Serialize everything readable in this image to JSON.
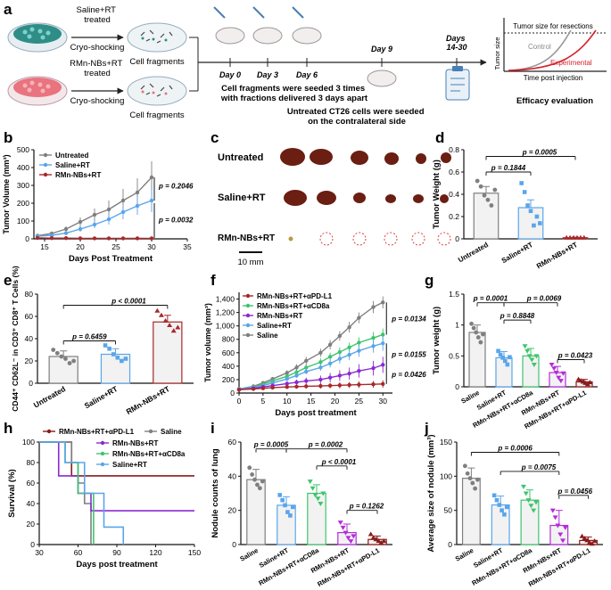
{
  "colors": {
    "gray": "#7f7f7f",
    "blue": "#5aa5ea",
    "red": "#a8282b",
    "green": "#3ec46d",
    "purple": "#8a2ad1",
    "violet": "#b42cd8",
    "darkred": "#8b1a1a",
    "dishTeal": "#2f8d88",
    "dishPink": "#e9737e"
  },
  "panel_letters": [
    "a",
    "b",
    "c",
    "d",
    "e",
    "f",
    "g",
    "h",
    "i",
    "j"
  ],
  "panel_a": {
    "top_treatment": "Saline+RT\ntreated",
    "top_process": "Cryo-shocking",
    "bottom_treatment": "RMn-NBs+RT\ntreated",
    "bottom_process": "Cryo-shocking",
    "fragments_top": "Cell fragments",
    "fragments_bottom": "Cell fragments",
    "days": [
      "Day 0",
      "Day 3",
      "Day 6",
      "Day 9",
      "Days\n14-30"
    ],
    "seed_note": "Cell fragments were seeded 3 times\nwith fractions delivered 3 days apart",
    "untreated_note": "Untreated CT26 cells were seeded\non the contralateral side",
    "efficacy": "Efficacy evaluation",
    "curve": {
      "title": "Tumor size for resections",
      "ylabel": "Tumor size",
      "xlabel": "Time post injection",
      "control": "Control",
      "experimental": "Experimental"
    }
  },
  "panel_c": {
    "rows": [
      "Untreated",
      "Saline+RT",
      "RMn-NBs+RT"
    ],
    "scale": "10 mm"
  },
  "chart_data": [
    {
      "id": "b",
      "type": "line",
      "ylabel": "Tumor Volume (mm³)",
      "xlabel": "Days Post Treatment",
      "xlim": [
        13.5,
        35
      ],
      "ylim": [
        0,
        500
      ],
      "xticks": [
        15,
        20,
        25,
        30,
        35
      ],
      "yticks": [
        0,
        100,
        200,
        300,
        400,
        500
      ],
      "legend": [
        "Untreated",
        "Saline+RT",
        "RMn-NBs+RT"
      ],
      "x": [
        14,
        16,
        18,
        20,
        22,
        24,
        26,
        28,
        30
      ],
      "series": [
        {
          "name": "Untreated",
          "color": "gray",
          "values": [
            18,
            30,
            55,
            95,
            135,
            165,
            215,
            260,
            345
          ],
          "err": [
            4,
            8,
            15,
            25,
            35,
            50,
            65,
            80,
            90
          ]
        },
        {
          "name": "Saline+RT",
          "color": "blue",
          "values": [
            15,
            20,
            32,
            55,
            80,
            110,
            150,
            185,
            215
          ],
          "err": [
            3,
            5,
            10,
            15,
            20,
            30,
            40,
            50,
            65
          ]
        },
        {
          "name": "RMn-NBs+RT",
          "color": "red",
          "values": [
            5,
            4,
            4,
            3,
            3,
            3,
            3,
            3,
            3
          ],
          "err": [
            1,
            1,
            1,
            1,
            1,
            1,
            1,
            1,
            1
          ]
        }
      ],
      "annotations": [
        "p = 0.2046",
        "p = 0.0032"
      ]
    },
    {
      "id": "d",
      "type": "bar",
      "ylabel": "Tumor Weight (g)",
      "ylim": [
        0,
        0.8
      ],
      "yticks": [
        0.0,
        0.2,
        0.4,
        0.6,
        0.8
      ],
      "categories": [
        "Untreated",
        "Saline+RT",
        "RMn-NBs+RT"
      ],
      "values": [
        0.41,
        0.28,
        0.01
      ],
      "err": [
        0.06,
        0.07,
        0.005
      ],
      "colors": [
        "gray",
        "blue",
        "red"
      ],
      "points": [
        [
          0.52,
          0.47,
          0.39,
          0.35,
          0.3,
          0.44
        ],
        [
          0.5,
          0.42,
          0.3,
          0.25,
          0.12,
          0.2,
          0.14
        ],
        [
          0.01,
          0.01,
          0.01,
          0.01,
          0.01,
          0.01
        ]
      ],
      "annotations": [
        "p = 0.1844",
        "p = 0.0005"
      ]
    },
    {
      "id": "e",
      "type": "bar",
      "ylabel": "CD44⁺ CD62L⁻ in CD3⁺ CD8⁺ T Cells (%)",
      "ylim": [
        0,
        80
      ],
      "yticks": [
        0,
        20,
        40,
        60,
        80
      ],
      "categories": [
        "Untreated",
        "Saline+RT",
        "RMn-NBs+RT"
      ],
      "values": [
        24,
        26,
        55
      ],
      "err": [
        5,
        5,
        6
      ],
      "colors": [
        "gray",
        "blue",
        "red"
      ],
      "points": [
        [
          30,
          27,
          24,
          22,
          18,
          20
        ],
        [
          34,
          31,
          26,
          23,
          20,
          22
        ],
        [
          65,
          61,
          56,
          52,
          47,
          50
        ]
      ],
      "annotations": [
        "p = 0.6459",
        "p < 0.0001"
      ]
    },
    {
      "id": "f",
      "type": "line",
      "ylabel": "Tumor volume (mm³)",
      "xlabel": "Days post treatment",
      "xlim": [
        0,
        32
      ],
      "ylim": [
        0,
        1500
      ],
      "xticks": [
        0,
        5,
        10,
        15,
        20,
        25,
        30
      ],
      "yticks": [
        0,
        200,
        400,
        600,
        800,
        1000,
        1200,
        1400
      ],
      "ytick_labels": [
        "0",
        "200",
        "400",
        "600",
        "800",
        "1,000",
        "1,200",
        "1,400"
      ],
      "legend": [
        "RMn-NBs+RT+αPD-L1",
        "RMn-NBs+RT+αCD8a",
        "RMn-NBs+RT",
        "Saline+RT",
        "Saline"
      ],
      "x": [
        0,
        3,
        5,
        7,
        10,
        12,
        14,
        17,
        19,
        21,
        23,
        25,
        28,
        30
      ],
      "series": [
        {
          "name": "Saline",
          "color": "gray",
          "values": [
            60,
            100,
            150,
            210,
            300,
            380,
            480,
            600,
            720,
            850,
            980,
            1120,
            1280,
            1350
          ],
          "err": [
            10,
            15,
            20,
            30,
            40,
            50,
            60,
            60,
            70,
            70,
            80,
            80,
            90,
            90
          ]
        },
        {
          "name": "RMn-NBs+RT+αCD8a",
          "color": "green",
          "values": [
            60,
            90,
            130,
            180,
            250,
            310,
            380,
            460,
            540,
            610,
            680,
            750,
            820,
            870
          ],
          "err": [
            10,
            15,
            20,
            25,
            30,
            40,
            50,
            60,
            60,
            70,
            70,
            80,
            90,
            90
          ]
        },
        {
          "name": "Saline+RT",
          "color": "blue",
          "values": [
            60,
            85,
            110,
            150,
            210,
            260,
            320,
            380,
            440,
            510,
            570,
            630,
            700,
            740
          ],
          "err": [
            10,
            15,
            20,
            25,
            30,
            35,
            40,
            50,
            60,
            70,
            80,
            90,
            100,
            110
          ]
        },
        {
          "name": "RMn-NBs+RT",
          "color": "purple",
          "values": [
            50,
            70,
            90,
            110,
            140,
            160,
            180,
            200,
            230,
            260,
            290,
            330,
            370,
            420
          ],
          "err": [
            10,
            15,
            20,
            25,
            30,
            40,
            50,
            60,
            70,
            80,
            90,
            100,
            110,
            120
          ]
        },
        {
          "name": "RMn-NBs+RT+αPD-L1",
          "color": "red",
          "values": [
            50,
            60,
            70,
            80,
            90,
            95,
            100,
            105,
            110,
            115,
            120,
            125,
            130,
            135
          ],
          "err": [
            8,
            10,
            15,
            20,
            25,
            30,
            35,
            40,
            40,
            45,
            45,
            50,
            50,
            55
          ]
        }
      ],
      "annotations": [
        "p = 0.0134",
        "p = 0.0155",
        "p = 0.0426"
      ]
    },
    {
      "id": "g",
      "type": "bar",
      "ylabel": "Tumor weight (g)",
      "ylim": [
        0,
        1.5
      ],
      "yticks": [
        0.0,
        0.5,
        1.0,
        1.5
      ],
      "categories": [
        "Saline",
        "Saline+RT",
        "RMn-NBs+RT+αCD8a",
        "RMn-NBs+RT",
        "RMn-NBs+RT+αPD-L1"
      ],
      "values": [
        0.88,
        0.47,
        0.5,
        0.23,
        0.08
      ],
      "err": [
        0.12,
        0.1,
        0.12,
        0.1,
        0.04
      ],
      "colors": [
        "gray",
        "blue",
        "green",
        "violet",
        "darkred"
      ],
      "points": [
        [
          1.02,
          0.95,
          0.88,
          0.8,
          0.72,
          0.85
        ],
        [
          0.58,
          0.52,
          0.47,
          0.42,
          0.36,
          0.48
        ],
        [
          0.66,
          0.58,
          0.5,
          0.44,
          0.36,
          0.5
        ],
        [
          0.36,
          0.3,
          0.23,
          0.15,
          0.1,
          0.22
        ],
        [
          0.12,
          0.1,
          0.08,
          0.06,
          0.04,
          0.07
        ]
      ],
      "annotations": [
        "p = 0.0001",
        "p = 0.0069",
        "p = 0.8848",
        "p = 0.0423"
      ]
    },
    {
      "id": "h",
      "type": "line",
      "ylabel": "Survival (%)",
      "xlabel": "Days post treatment",
      "xlim": [
        30,
        150
      ],
      "ylim": [
        0,
        100
      ],
      "xticks": [
        30,
        60,
        90,
        120,
        150
      ],
      "yticks": [
        0,
        20,
        40,
        60,
        80,
        100
      ],
      "legend": [
        "RMn-NBs+RT+αPD-L1",
        "Saline",
        "RMn-NBs+RT",
        "RMn-NBs+RT+αCD8a",
        "Saline+RT"
      ],
      "series": [
        {
          "name": "RMn-NBs+RT+αPD-L1",
          "color": "darkred",
          "x": [
            30,
            55,
            55,
            150
          ],
          "values": [
            100,
            100,
            67,
            67
          ]
        },
        {
          "name": "Saline",
          "color": "gray",
          "x": [
            30,
            55,
            55,
            60,
            60,
            65,
            65,
            70,
            70
          ],
          "values": [
            100,
            100,
            80,
            80,
            60,
            60,
            40,
            40,
            0
          ]
        },
        {
          "name": "RMn-NBs+RT",
          "color": "purple",
          "x": [
            30,
            45,
            45,
            60,
            60,
            70,
            70,
            150
          ],
          "values": [
            100,
            100,
            67,
            67,
            50,
            50,
            33,
            33
          ]
        },
        {
          "name": "RMn-NBs+RT+αCD8a",
          "color": "green",
          "x": [
            30,
            50,
            50,
            60,
            60,
            72,
            72
          ],
          "values": [
            100,
            100,
            80,
            80,
            50,
            50,
            0
          ]
        },
        {
          "name": "Saline+RT",
          "color": "blue",
          "x": [
            30,
            50,
            50,
            65,
            65,
            80,
            80,
            95,
            95
          ],
          "values": [
            100,
            100,
            80,
            80,
            50,
            50,
            17,
            17,
            0
          ]
        }
      ]
    },
    {
      "id": "i",
      "type": "bar",
      "ylabel": "Nodule counts of lung",
      "ylim": [
        0,
        60
      ],
      "yticks": [
        0,
        20,
        40,
        60
      ],
      "categories": [
        "Saline",
        "Saline+RT",
        "RMn-NBs+RT+αCD8a",
        "RMn-NBs+RT",
        "RMn-NBs+RT+αPD-L1"
      ],
      "values": [
        38,
        23,
        30,
        7,
        3
      ],
      "err": [
        6,
        5,
        5,
        5,
        2
      ],
      "colors": [
        "gray",
        "blue",
        "green",
        "violet",
        "darkred"
      ],
      "points": [
        [
          45,
          41,
          38,
          35,
          33,
          37
        ],
        [
          29,
          26,
          23,
          19,
          17,
          22
        ],
        [
          37,
          33,
          29,
          27,
          24,
          30
        ],
        [
          13,
          10,
          7,
          4,
          2,
          5
        ],
        [
          6,
          4,
          3,
          2,
          1,
          2
        ]
      ],
      "annotations": [
        "p = 0.0005",
        "p = 0.0002",
        "p < 0.0001",
        "p = 0.1262"
      ]
    },
    {
      "id": "j",
      "type": "bar",
      "ylabel": "Average size of nodule (mm³)",
      "ylim": [
        0,
        150
      ],
      "yticks": [
        0,
        50,
        100,
        150
      ],
      "categories": [
        "Saline",
        "Saline+RT",
        "RMn-NBs+RT+αCD8a",
        "RMn-NBs+RT",
        "RMn-NBs+RT+αPD-L1"
      ],
      "values": [
        97,
        58,
        65,
        28,
        6
      ],
      "err": [
        15,
        13,
        15,
        22,
        5
      ],
      "colors": [
        "gray",
        "blue",
        "green",
        "violet",
        "darkred"
      ],
      "points": [
        [
          115,
          104,
          97,
          90,
          82,
          95
        ],
        [
          72,
          65,
          58,
          50,
          44,
          55
        ],
        [
          85,
          75,
          65,
          57,
          50,
          62
        ],
        [
          50,
          40,
          28,
          15,
          6,
          25
        ],
        [
          12,
          9,
          6,
          3,
          1,
          5
        ]
      ],
      "annotations": [
        "p = 0.0006",
        "p = 0.0075",
        "p = 0.0456"
      ]
    }
  ]
}
